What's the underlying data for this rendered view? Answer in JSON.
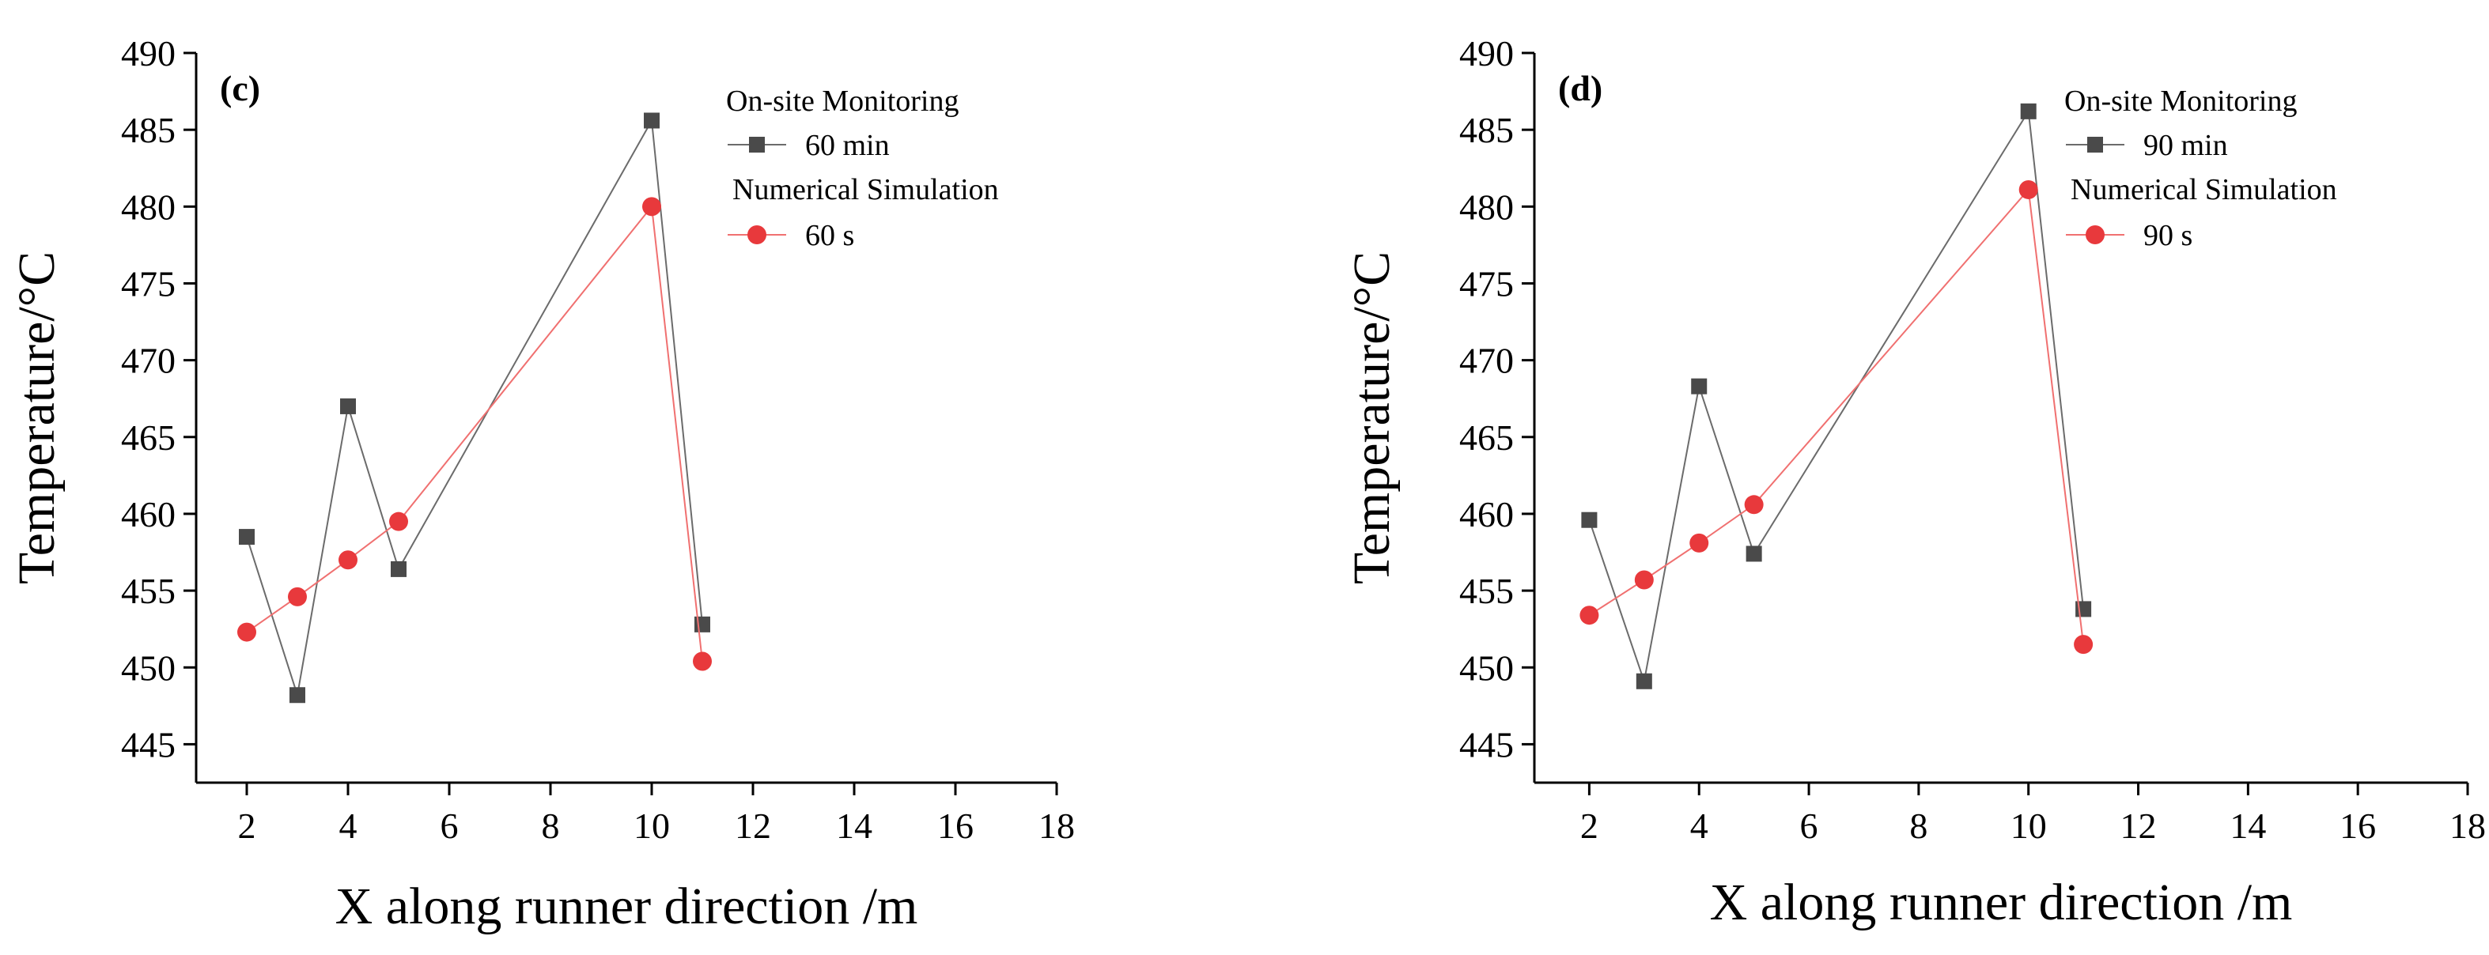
{
  "chart_data": [
    {
      "type": "line",
      "panel_label": "(c)",
      "xlabel": "X along runner direction /m",
      "ylabel": "Temperature/°C",
      "xlim": [
        1,
        18
      ],
      "ylim": [
        442.5,
        490
      ],
      "x_ticks": [
        "2",
        "4",
        "6",
        "8",
        "10",
        "12",
        "14",
        "16",
        "18"
      ],
      "y_ticks": [
        "445",
        "450",
        "455",
        "460",
        "465",
        "470",
        "475",
        "480",
        "485",
        "490"
      ],
      "legend": {
        "group1_title": "On-site Monitoring",
        "group2_title": "Numerical Simulation"
      },
      "series": [
        {
          "name": "60 min",
          "marker": "square",
          "color": "#4a4a4a",
          "x": [
            2,
            3,
            4,
            5,
            10,
            11
          ],
          "y": [
            458.5,
            448.2,
            467.0,
            456.4,
            485.6,
            452.8
          ]
        },
        {
          "name": "60 s",
          "marker": "circle",
          "color": "#e8393c",
          "x": [
            2,
            3,
            4,
            5,
            10,
            11
          ],
          "y": [
            452.3,
            454.6,
            457.0,
            459.5,
            480.0,
            450.4
          ]
        }
      ]
    },
    {
      "type": "line",
      "panel_label": "(d)",
      "xlabel": "X along runner direction /m",
      "ylabel": "Temperature/°C",
      "xlim": [
        1,
        18
      ],
      "ylim": [
        442.5,
        490
      ],
      "x_ticks": [
        "2",
        "4",
        "6",
        "8",
        "10",
        "12",
        "14",
        "16",
        "18"
      ],
      "y_ticks": [
        "445",
        "450",
        "455",
        "460",
        "465",
        "470",
        "475",
        "480",
        "485",
        "490"
      ],
      "legend": {
        "group1_title": "On-site Monitoring",
        "group2_title": "Numerical Simulation"
      },
      "series": [
        {
          "name": "90 min",
          "marker": "square",
          "color": "#4a4a4a",
          "x": [
            2,
            3,
            4,
            5,
            10,
            11
          ],
          "y": [
            459.6,
            449.1,
            468.3,
            457.4,
            486.2,
            453.8
          ]
        },
        {
          "name": "90 s",
          "marker": "circle",
          "color": "#e8393c",
          "x": [
            2,
            3,
            4,
            5,
            10,
            11
          ],
          "y": [
            453.4,
            455.7,
            458.1,
            460.6,
            481.1,
            451.5
          ]
        }
      ]
    }
  ]
}
